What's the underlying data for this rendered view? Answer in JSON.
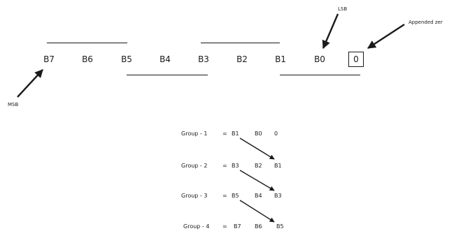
{
  "bits": [
    "B7",
    "B6",
    "B5",
    "B4",
    "B3",
    "B2",
    "B1",
    "B0"
  ],
  "appended_bit": "0",
  "labels": {
    "lsb": "LSB",
    "msb": "MSB",
    "appended": "Appended zer"
  },
  "groups": [
    {
      "label": "Group - 1",
      "eq": "=",
      "bits": [
        "B1",
        "B0",
        "0"
      ]
    },
    {
      "label": "Group - 2",
      "eq": "=",
      "bits": [
        "B3",
        "B2",
        "B1"
      ]
    },
    {
      "label": "Group - 3",
      "eq": "=",
      "bits": [
        "B5",
        "B4",
        "B3"
      ]
    },
    {
      "label": "Group - 4",
      "eq": "=",
      "bits": [
        "B7",
        "B6",
        "B5"
      ]
    }
  ]
}
